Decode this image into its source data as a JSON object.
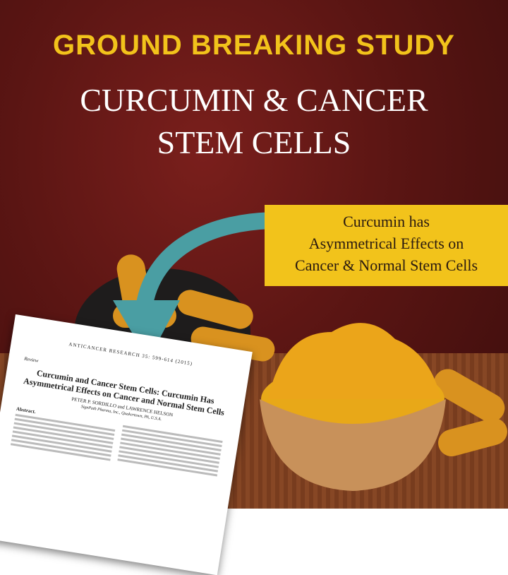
{
  "headline": "GROUND BREAKING STUDY",
  "subtitle_line1": "CURCUMIN & CANCER",
  "subtitle_line2": "STEM CELLS",
  "callout": {
    "line1": "Curcumin has",
    "line2": "Asymmetrical Effects on",
    "line3": "Cancer & Normal Stem Cells"
  },
  "paper": {
    "journal": "ANTICANCER RESEARCH 35: 599-614 (2015)",
    "section": "Review",
    "title": "Curcumin and Cancer Stem Cells: Curcumin Has Asymmetrical Effects on Cancer and Normal Stem Cells",
    "authors": "PETER P. SORDILLO and LAWRENCE HELSON",
    "affiliation": "SignPath Pharma, Inc., Quakertown, PA, U.S.A.",
    "abstract_label": "Abstract."
  },
  "colors": {
    "accent_yellow": "#f2c31b",
    "arrow_teal": "#4a9ea3",
    "background_red": "#5a1513"
  }
}
